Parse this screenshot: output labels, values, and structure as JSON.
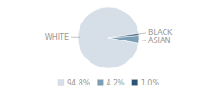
{
  "chart_data": {
    "type": "pie",
    "categories": [
      "WHITE",
      "ASIAN",
      "BLACK"
    ],
    "values": [
      94.8,
      4.2,
      1.0
    ],
    "value_labels": [
      "94.8%",
      "4.2%",
      "1.0%"
    ],
    "colors": [
      "#d6dfe8",
      "#7b9eb5",
      "#2d5472"
    ],
    "legend": "bottom"
  }
}
